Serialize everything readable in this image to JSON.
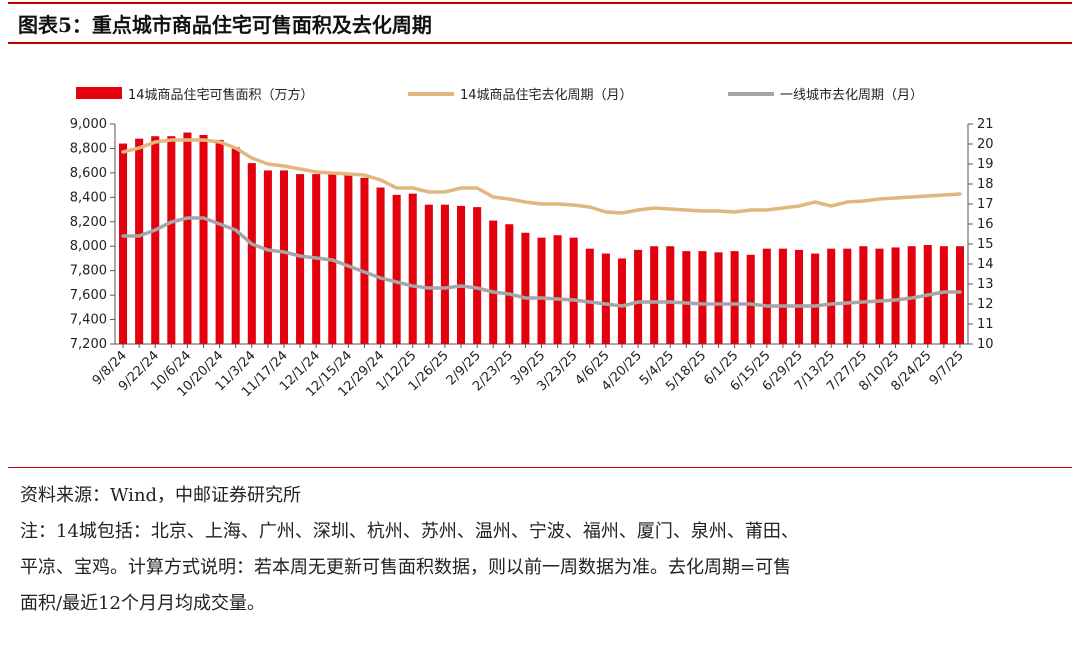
{
  "header": {
    "title": "图表5：重点城市商品住宅可售面积及去化周期"
  },
  "notes": {
    "source": "资料来源：Wind，中邮证券研究所",
    "note_line1": "注：14城包括：北京、上海、广州、深圳、杭州、苏州、温州、宁波、福州、厦门、泉州、莆田、",
    "note_line2": "平凉、宝鸡。计算方式说明：若本周无更新可售面积数据，则以前一周数据为准。去化周期=可售",
    "note_line3": "面积/最近12个月月均成交量。"
  },
  "colors": {
    "bar": "#e3000f",
    "line_14": "#e2b77f",
    "line_tier1": "#a6a6a6",
    "rule": "#c00000"
  },
  "chart_data": {
    "type": "bar",
    "title": "",
    "xlabel": "",
    "ylabel": "",
    "categories": [
      "9/8/24",
      "9/15/24",
      "9/22/24",
      "9/29/24",
      "10/6/24",
      "10/13/24",
      "10/20/24",
      "10/27/24",
      "11/3/24",
      "11/10/24",
      "11/17/24",
      "11/24/24",
      "12/1/24",
      "12/8/24",
      "12/15/24",
      "12/22/24",
      "12/29/24",
      "1/5/25",
      "1/12/25",
      "1/19/25",
      "1/26/25",
      "2/2/25",
      "2/9/25",
      "2/16/25",
      "2/23/25",
      "3/2/25",
      "3/9/25",
      "3/16/25",
      "3/23/25",
      "3/30/25",
      "4/6/25",
      "4/13/25",
      "4/20/25",
      "4/27/25",
      "5/4/25",
      "5/11/25",
      "5/18/25",
      "5/25/25",
      "6/1/25",
      "6/8/25",
      "6/15/25",
      "6/22/25",
      "6/29/25",
      "7/6/25",
      "7/13/25",
      "7/20/25",
      "7/27/25",
      "8/3/25",
      "8/10/25",
      "8/17/25",
      "8/24/25",
      "8/31/25",
      "9/7/25"
    ],
    "tick_labels": [
      "9/8/24",
      "9/22/24",
      "10/6/24",
      "10/20/24",
      "11/3/24",
      "11/17/24",
      "12/1/24",
      "12/15/24",
      "12/29/24",
      "1/12/25",
      "1/26/25",
      "2/9/25",
      "2/23/25",
      "3/9/25",
      "3/23/25",
      "4/6/25",
      "4/20/25",
      "5/4/25",
      "5/18/25",
      "6/1/25",
      "6/15/25",
      "6/29/25",
      "7/13/25",
      "7/27/25",
      "8/10/25",
      "8/24/25",
      "9/7/25"
    ],
    "ylim_left": [
      7200,
      9000
    ],
    "yticks_left": [
      "7,200",
      "7,400",
      "7,600",
      "7,800",
      "8,000",
      "8,200",
      "8,400",
      "8,600",
      "8,800",
      "9,000"
    ],
    "ylim_right": [
      10,
      21
    ],
    "yticks_right": [
      "10",
      "11",
      "12",
      "13",
      "14",
      "15",
      "16",
      "17",
      "18",
      "19",
      "20",
      "21"
    ],
    "legend_position": "top",
    "grid": false,
    "series": [
      {
        "name": "14城商品住宅可售面积（万方）",
        "type": "bar",
        "axis": "left",
        "values": [
          8840,
          8880,
          8900,
          8900,
          8930,
          8910,
          8870,
          8810,
          8680,
          8620,
          8620,
          8590,
          8590,
          8590,
          8580,
          8560,
          8480,
          8420,
          8430,
          8340,
          8340,
          8330,
          8320,
          8210,
          8180,
          8110,
          8070,
          8090,
          8070,
          7980,
          7940,
          7900,
          7970,
          8000,
          8000,
          7960,
          7960,
          7950,
          7960,
          7930,
          7980,
          7980,
          7970,
          7940,
          7980,
          7980,
          8000,
          7980,
          7990,
          8000,
          8010,
          8000,
          8000
        ]
      },
      {
        "name": "14城商品住宅去化周期（月）",
        "type": "line",
        "axis": "right",
        "values": [
          19.6,
          19.8,
          20.1,
          20.2,
          20.2,
          20.2,
          20.1,
          19.8,
          19.3,
          19.0,
          18.9,
          18.75,
          18.6,
          18.55,
          18.5,
          18.45,
          18.2,
          17.8,
          17.8,
          17.6,
          17.6,
          17.8,
          17.8,
          17.35,
          17.25,
          17.1,
          17.0,
          17.0,
          16.95,
          16.85,
          16.6,
          16.55,
          16.7,
          16.8,
          16.75,
          16.7,
          16.65,
          16.65,
          16.6,
          16.7,
          16.7,
          16.8,
          16.9,
          17.1,
          16.9,
          17.1,
          17.15,
          17.25,
          17.3,
          17.35,
          17.4,
          17.45,
          17.5
        ]
      },
      {
        "name": "一线城市去化周期（月）",
        "type": "line",
        "axis": "right",
        "values": [
          15.4,
          15.4,
          15.7,
          16.1,
          16.3,
          16.3,
          16.0,
          15.7,
          15.0,
          14.7,
          14.6,
          14.4,
          14.3,
          14.2,
          13.9,
          13.6,
          13.3,
          13.1,
          12.9,
          12.8,
          12.8,
          12.9,
          12.8,
          12.6,
          12.5,
          12.3,
          12.3,
          12.25,
          12.2,
          12.1,
          12.0,
          11.9,
          12.1,
          12.1,
          12.1,
          12.05,
          12.0,
          12.0,
          12.0,
          12.0,
          11.9,
          11.9,
          11.9,
          11.9,
          12.0,
          12.05,
          12.1,
          12.15,
          12.2,
          12.3,
          12.45,
          12.6,
          12.6
        ]
      }
    ]
  }
}
